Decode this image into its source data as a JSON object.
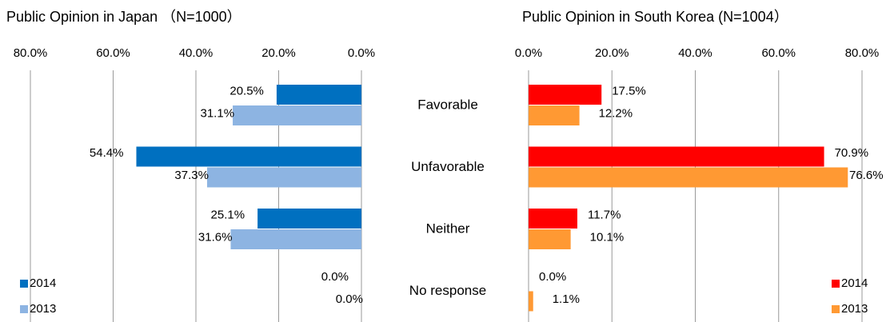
{
  "chart_data": [
    {
      "type": "barh",
      "title": "Public Opinion in Japan （N=1000）",
      "categories": [
        "Favorable",
        "Unfavorable",
        "Neither",
        "No response"
      ],
      "series": [
        {
          "name": "2014",
          "color": "#0070c0",
          "values": [
            20.5,
            54.4,
            25.1,
            0.0
          ],
          "value_labels": [
            "20.5%",
            "54.4%",
            "25.1%",
            "0.0%"
          ]
        },
        {
          "name": "2013",
          "color": "#8db4e2",
          "values": [
            31.1,
            37.3,
            31.6,
            0.0
          ],
          "value_labels": [
            "31.1%",
            "37.3%",
            "31.6%",
            "0.0%"
          ]
        }
      ],
      "xlim": [
        80,
        0
      ],
      "xticks": [
        {
          "value": 80,
          "label": "80.0%"
        },
        {
          "value": 60,
          "label": "60.0%"
        },
        {
          "value": 40,
          "label": "40.0%"
        },
        {
          "value": 20,
          "label": "20.0%"
        },
        {
          "value": 0,
          "label": "0.0%"
        }
      ],
      "grid": true,
      "legend": "lower left"
    },
    {
      "type": "barh",
      "title": "Public Opinion in South Korea (N=1004）",
      "series": [
        {
          "name": "2014",
          "color": "#ff0000",
          "values": [
            17.5,
            70.9,
            11.7,
            0.0
          ],
          "value_labels": [
            "17.5%",
            "70.9%",
            "11.7%",
            "0.0%"
          ]
        },
        {
          "name": "2013",
          "color": "#ff9933",
          "values": [
            12.2,
            76.6,
            10.1,
            1.1
          ],
          "value_labels": [
            "12.2%",
            "76.6%",
            "10.1%",
            "1.1%"
          ]
        }
      ],
      "xlim": [
        0,
        80
      ],
      "xticks": [
        {
          "value": 0,
          "label": "0.0%"
        },
        {
          "value": 20,
          "label": "20.0%"
        },
        {
          "value": 40,
          "label": "40.0%"
        },
        {
          "value": 60,
          "label": "60.0%"
        },
        {
          "value": 80,
          "label": "80.0%"
        }
      ],
      "grid": true,
      "legend": "lower right"
    }
  ]
}
